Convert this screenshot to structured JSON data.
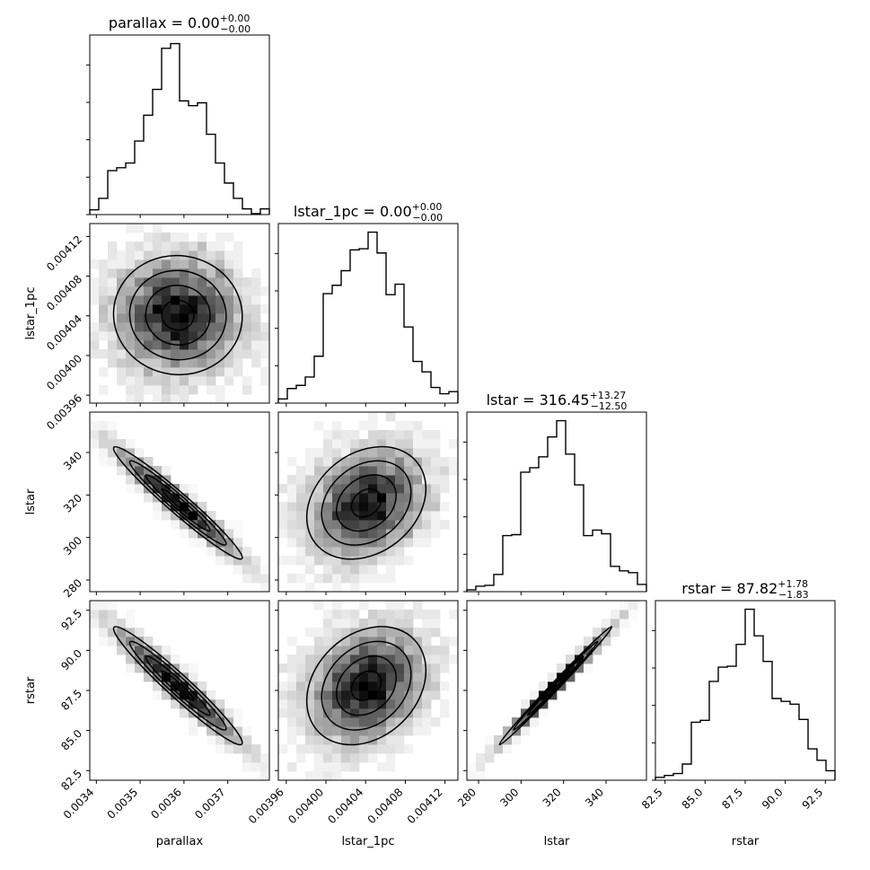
{
  "chart_data": {
    "type": "corner",
    "parameters": [
      {
        "name": "parallax",
        "xlabel": "parallax",
        "ylabel": "",
        "range": [
          0.003385,
          0.003795
        ],
        "ticks": [
          0.0034,
          0.0035,
          0.0036,
          0.0037
        ],
        "tick_labels": [
          "0.0034",
          "0.0035",
          "0.0036",
          "0.0037"
        ],
        "title": {
          "prefix": "parallax = 0.00",
          "upper": "+0.00",
          "lower": "−0.00"
        },
        "hist": {
          "edges": [
            0.003385,
            0.0034055,
            0.003426,
            0.0034465,
            0.003467,
            0.0034875,
            0.003508,
            0.0035285,
            0.003549,
            0.0035695,
            0.00359,
            0.0036105,
            0.003631,
            0.0036515,
            0.003672,
            0.0036925,
            0.003713,
            0.0037335,
            0.003754,
            0.0037745,
            0.003795
          ],
          "counts": [
            5,
            17,
            46,
            49,
            54,
            77,
            104,
            131,
            174,
            179,
            119,
            114,
            117,
            84,
            54,
            33,
            17,
            6,
            1,
            6
          ]
        }
      },
      {
        "name": "lstar_1pc",
        "xlabel": "lstar_1pc",
        "ylabel": "lstar_1pc",
        "range": [
          0.003952,
          0.004133
        ],
        "ticks": [
          0.00396,
          0.004,
          0.00404,
          0.00408,
          0.00412
        ],
        "tick_labels": [
          "0.00396",
          "0.00400",
          "0.00404",
          "0.00408",
          "0.00412"
        ],
        "title": {
          "prefix": "lstar_1pc = 0.00",
          "upper": "+0.00",
          "lower": "−0.00"
        },
        "hist": {
          "edges": [
            0.003952,
            0.00396105,
            0.0039701,
            0.00397915,
            0.0039882,
            0.00399725,
            0.0040063,
            0.00401535,
            0.0040244,
            0.00403345,
            0.0040425,
            0.00405155,
            0.0040606,
            0.00406965,
            0.0040787,
            0.00408775,
            0.0040968,
            0.00410585,
            0.0041149,
            0.00412395,
            0.004133
          ],
          "counts": [
            4,
            14,
            17,
            25,
            45,
            105,
            113,
            127,
            147,
            148,
            164,
            144,
            104,
            114,
            73,
            40,
            30,
            15,
            9,
            11
          ]
        }
      },
      {
        "name": "lstar",
        "xlabel": "lstar",
        "ylabel": "lstar",
        "range": [
          274.5,
          359.0
        ],
        "ticks": [
          280,
          300,
          320,
          340
        ],
        "tick_labels": [
          "280",
          "300",
          "320",
          "340"
        ],
        "title": {
          "prefix": "lstar = 316.45",
          "upper": "+13.27",
          "lower": "−12.50"
        },
        "hist": {
          "edges": [
            274.5,
            278.725,
            282.95,
            287.175,
            291.4,
            295.625,
            299.85,
            304.075,
            308.3,
            312.525,
            316.75,
            320.975,
            325.2,
            329.425,
            333.65,
            337.875,
            342.1,
            346.325,
            350.55,
            354.775,
            359.0
          ],
          "counts": [
            2,
            6,
            7,
            19,
            62,
            63,
            132,
            137,
            149,
            171,
            189,
            152,
            118,
            62,
            68,
            64,
            28,
            23,
            21,
            8
          ]
        }
      },
      {
        "name": "rstar",
        "xlabel": "rstar",
        "ylabel": "rstar",
        "range": [
          81.9,
          93.1
        ],
        "ticks": [
          82.5,
          85.0,
          87.5,
          90.0,
          92.5
        ],
        "tick_labels": [
          "82.5",
          "85.0",
          "87.5",
          "90.0",
          "92.5"
        ],
        "title": {
          "prefix": "rstar = 87.82",
          "upper": "+1.78",
          "lower": "−1.83"
        },
        "hist": {
          "edges": [
            81.9,
            82.46,
            83.02,
            83.58,
            84.14,
            84.7,
            85.26,
            85.82,
            86.38,
            86.94,
            87.5,
            88.06,
            88.62,
            89.18,
            89.74,
            90.3,
            90.86,
            91.42,
            91.98,
            92.54,
            93.1
          ],
          "counts": [
            3,
            5,
            7,
            17,
            61,
            63,
            104,
            119,
            120,
            143,
            180,
            152,
            125,
            86,
            83,
            80,
            64,
            33,
            21,
            10
          ]
        }
      }
    ],
    "samples_2d": {
      "parallax": [
        0.003413,
        0.003424,
        0.003448,
        0.003458,
        0.003471,
        0.003485,
        0.003497,
        0.003509,
        0.003518,
        0.003527,
        0.003538,
        0.003549,
        0.00356,
        0.003571,
        0.003581,
        0.003592,
        0.003603,
        0.003614,
        0.003625,
        0.003636,
        0.003647,
        0.003658,
        0.003669,
        0.00368,
        0.003691,
        0.003702,
        0.003713
      ],
      "lstar": [
        346.5,
        342.5,
        337.5,
        335.5,
        332.0,
        329.0,
        327.0,
        324.5,
        322.5,
        320.5,
        318.5,
        316.5,
        314.0,
        312.0,
        310.0,
        308.0,
        306.0,
        304.5,
        302.5,
        300.5,
        298.5,
        297.0,
        295.0,
        293.5,
        291.5,
        290.0,
        288.0
      ],
      "rstar": [
        92.1,
        91.6,
        91.0,
        90.6,
        90.2,
        89.8,
        89.4,
        89.1,
        88.8,
        88.5,
        88.2,
        87.9,
        87.6,
        87.3,
        87.0,
        86.7,
        86.5,
        86.2,
        85.9,
        85.6,
        85.3,
        85.0,
        84.8,
        84.5,
        84.2,
        84.0,
        83.7
      ]
    }
  }
}
